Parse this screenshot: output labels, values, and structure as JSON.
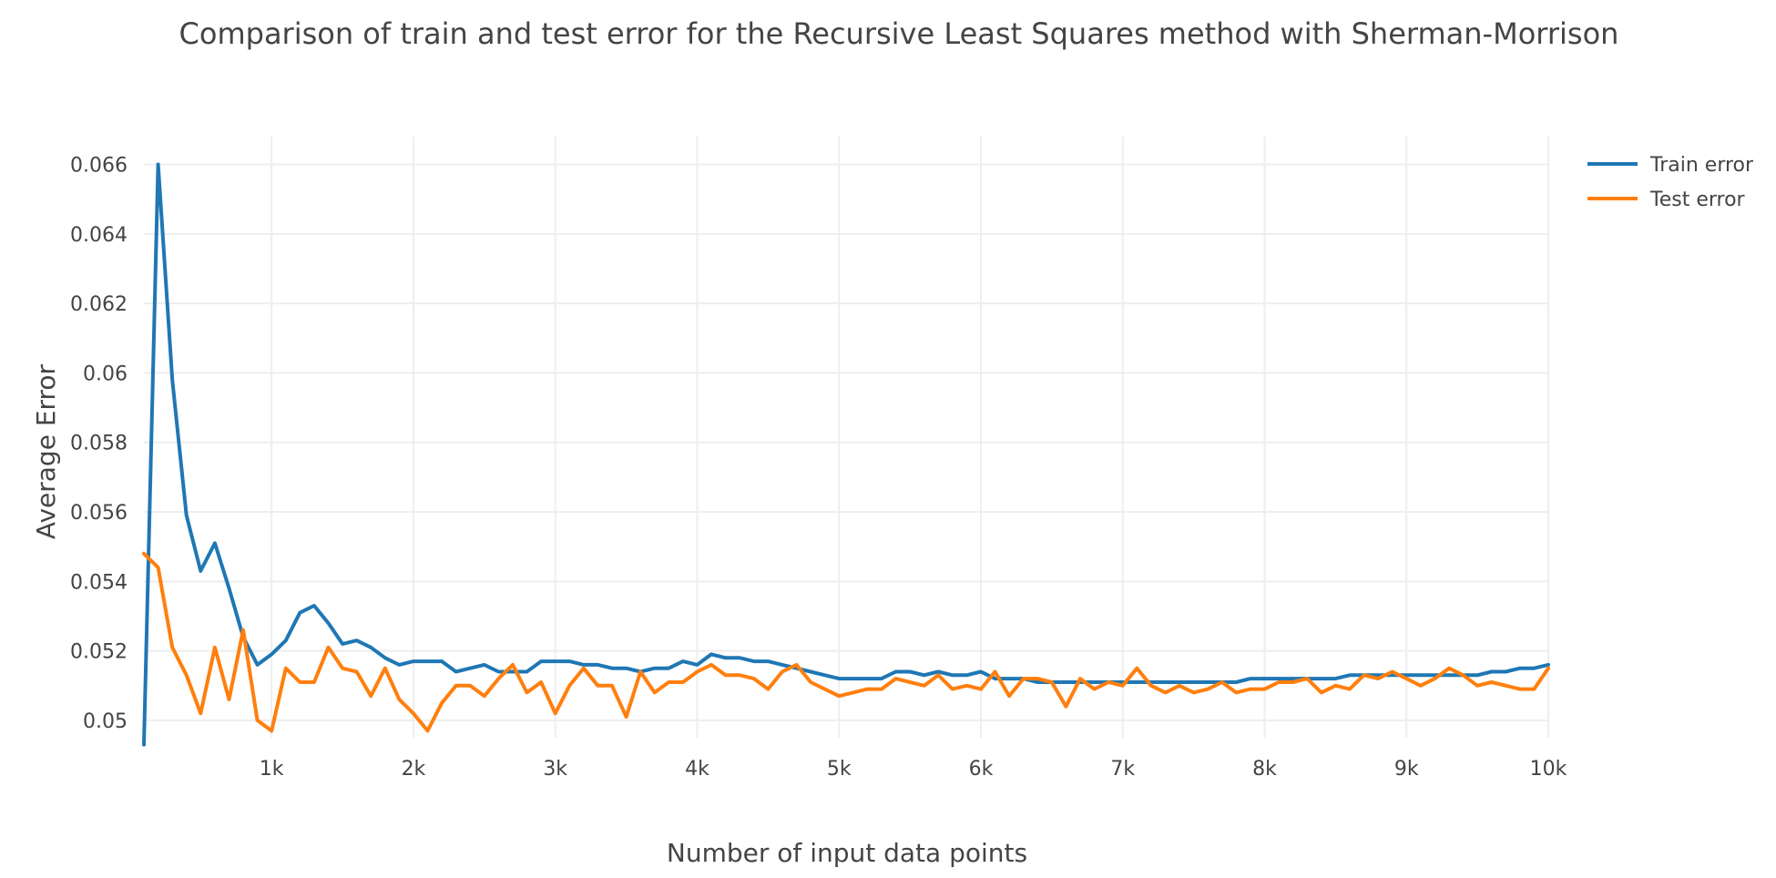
{
  "chart_data": {
    "type": "line",
    "title": "Comparison of train and test error for the Recursive Least Squares method with Sherman-Morrison",
    "xlabel": "Number of input data points",
    "ylabel": "Average Error",
    "xlim": [
      100,
      10000
    ],
    "ylim": [
      0.0495,
      0.0668
    ],
    "grid": true,
    "legend_position": "top-right",
    "x_ticks": [
      1000,
      2000,
      3000,
      4000,
      5000,
      6000,
      7000,
      8000,
      9000,
      10000
    ],
    "x_tick_labels": [
      "1k",
      "2k",
      "3k",
      "4k",
      "5k",
      "6k",
      "7k",
      "8k",
      "9k",
      "10k"
    ],
    "y_ticks": [
      0.05,
      0.052,
      0.054,
      0.056,
      0.058,
      0.06,
      0.062,
      0.064,
      0.066
    ],
    "y_tick_labels": [
      "0.05",
      "0.052",
      "0.054",
      "0.056",
      "0.058",
      "0.06",
      "0.062",
      "0.064",
      "0.066"
    ],
    "x": [
      100,
      200,
      300,
      400,
      500,
      600,
      700,
      800,
      900,
      1000,
      1100,
      1200,
      1300,
      1400,
      1500,
      1600,
      1700,
      1800,
      1900,
      2000,
      2100,
      2200,
      2300,
      2400,
      2500,
      2600,
      2700,
      2800,
      2900,
      3000,
      3100,
      3200,
      3300,
      3400,
      3500,
      3600,
      3700,
      3800,
      3900,
      4000,
      4100,
      4200,
      4300,
      4400,
      4500,
      4600,
      4700,
      4800,
      4900,
      5000,
      5100,
      5200,
      5300,
      5400,
      5500,
      5600,
      5700,
      5800,
      5900,
      6000,
      6100,
      6200,
      6300,
      6400,
      6500,
      6600,
      6700,
      6800,
      6900,
      7000,
      7100,
      7200,
      7300,
      7400,
      7500,
      7600,
      7700,
      7800,
      7900,
      8000,
      8100,
      8200,
      8300,
      8400,
      8500,
      8600,
      8700,
      8800,
      8900,
      9000,
      9100,
      9200,
      9300,
      9400,
      9500,
      9600,
      9700,
      9800,
      9900,
      10000
    ],
    "series": [
      {
        "name": "Train error",
        "color": "#1f77b4",
        "values": [
          0.0493,
          0.066,
          0.0598,
          0.0559,
          0.0543,
          0.0551,
          0.0538,
          0.0524,
          0.0516,
          0.0519,
          0.0523,
          0.0531,
          0.0533,
          0.0528,
          0.0522,
          0.0523,
          0.0521,
          0.0518,
          0.0516,
          0.0517,
          0.0517,
          0.0517,
          0.0514,
          0.0515,
          0.0516,
          0.0514,
          0.0514,
          0.0514,
          0.0517,
          0.0517,
          0.0517,
          0.0516,
          0.0516,
          0.0515,
          0.0515,
          0.0514,
          0.0515,
          0.0515,
          0.0517,
          0.0516,
          0.0519,
          0.0518,
          0.0518,
          0.0517,
          0.0517,
          0.0516,
          0.0515,
          0.0514,
          0.0513,
          0.0512,
          0.0512,
          0.0512,
          0.0512,
          0.0514,
          0.0514,
          0.0513,
          0.0514,
          0.0513,
          0.0513,
          0.0514,
          0.0512,
          0.0512,
          0.0512,
          0.0511,
          0.0511,
          0.0511,
          0.0511,
          0.0511,
          0.0511,
          0.0511,
          0.0511,
          0.0511,
          0.0511,
          0.0511,
          0.0511,
          0.0511,
          0.0511,
          0.0511,
          0.0512,
          0.0512,
          0.0512,
          0.0512,
          0.0512,
          0.0512,
          0.0512,
          0.0513,
          0.0513,
          0.0513,
          0.0513,
          0.0513,
          0.0513,
          0.0513,
          0.0513,
          0.0513,
          0.0513,
          0.0514,
          0.0514,
          0.0515,
          0.0515,
          0.0516
        ]
      },
      {
        "name": "Test error",
        "color": "#ff7f0e",
        "values": [
          0.0548,
          0.0544,
          0.0521,
          0.0513,
          0.0502,
          0.0521,
          0.0506,
          0.0526,
          0.05,
          0.0497,
          0.0515,
          0.0511,
          0.0511,
          0.0521,
          0.0515,
          0.0514,
          0.0507,
          0.0515,
          0.0506,
          0.0502,
          0.0497,
          0.0505,
          0.051,
          0.051,
          0.0507,
          0.0512,
          0.0516,
          0.0508,
          0.0511,
          0.0502,
          0.051,
          0.0515,
          0.051,
          0.051,
          0.0501,
          0.0514,
          0.0508,
          0.0511,
          0.0511,
          0.0514,
          0.0516,
          0.0513,
          0.0513,
          0.0512,
          0.0509,
          0.0514,
          0.0516,
          0.0511,
          0.0509,
          0.0507,
          0.0508,
          0.0509,
          0.0509,
          0.0512,
          0.0511,
          0.051,
          0.0513,
          0.0509,
          0.051,
          0.0509,
          0.0514,
          0.0507,
          0.0512,
          0.0512,
          0.0511,
          0.0504,
          0.0512,
          0.0509,
          0.0511,
          0.051,
          0.0515,
          0.051,
          0.0508,
          0.051,
          0.0508,
          0.0509,
          0.0511,
          0.0508,
          0.0509,
          0.0509,
          0.0511,
          0.0511,
          0.0512,
          0.0508,
          0.051,
          0.0509,
          0.0513,
          0.0512,
          0.0514,
          0.0512,
          0.051,
          0.0512,
          0.0515,
          0.0513,
          0.051,
          0.0511,
          0.051,
          0.0509,
          0.0509,
          0.0515
        ]
      }
    ]
  }
}
